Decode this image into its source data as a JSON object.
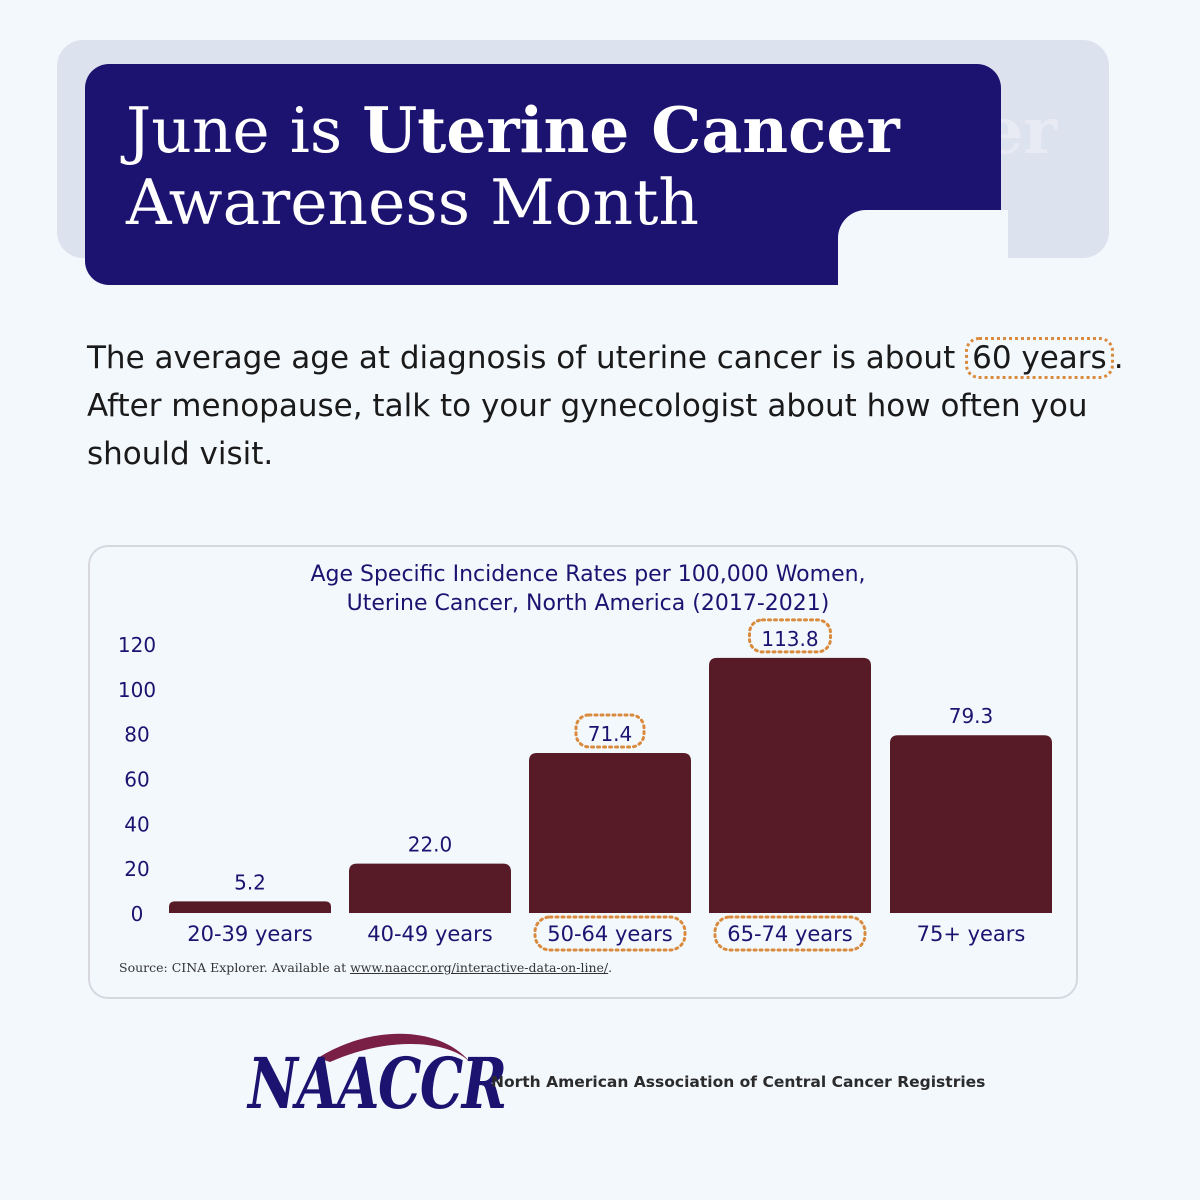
{
  "header": {
    "title_line1_plain": "June is ",
    "title_line1_bold": "Uterine Cancer",
    "title_line2": "Awareness Month",
    "shadow_fragment": "er"
  },
  "intro": {
    "part1": "The average age at diagnosis of uterine cancer is about ",
    "highlight": "60 years",
    "part2": ". After menopause, talk to your gynecologist about how often you should visit."
  },
  "chart_data": {
    "type": "bar",
    "title_line1": "Age Specific Incidence Rates per 100,000 Women,",
    "title_line2": "Uterine Cancer, North America (2017-2021)",
    "categories": [
      "20-39 years",
      "40-49 years",
      "50-64 years",
      "65-74 years",
      "75+ years"
    ],
    "values": [
      5.2,
      22.0,
      71.4,
      113.8,
      79.3
    ],
    "value_labels": [
      "5.2",
      "22.0",
      "71.4",
      "113.8",
      "79.3"
    ],
    "highlighted_values": [
      false,
      false,
      true,
      true,
      false
    ],
    "highlighted_categories": [
      false,
      false,
      true,
      true,
      false
    ],
    "ylim": [
      0,
      120
    ],
    "yticks": [
      "0",
      "20",
      "40",
      "60",
      "80",
      "100",
      "120"
    ],
    "grid": false,
    "bar_color": "#561b26",
    "text_color": "#1c1370",
    "highlight_color": "#d98a3c"
  },
  "source": {
    "prefix": "Source: CINA Explorer. Available at ",
    "link": "www.naaccr.org/interactive-data-on-line/",
    "suffix": "."
  },
  "footer": {
    "logo": "NAACCR",
    "org_name": "North American Association of Central Cancer Registries"
  },
  "colors": {
    "navy": "#1c1370",
    "background": "#f3f8fd",
    "accent_orange": "#d98a3c",
    "logo_swoosh": "#7a1f45"
  }
}
